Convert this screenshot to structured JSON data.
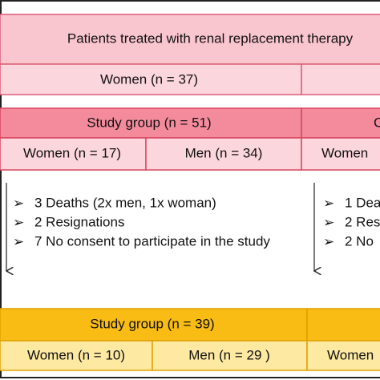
{
  "top": {
    "title": "Patients treated with renal replacement therapy",
    "women": "Women (n = 37)"
  },
  "study_group": {
    "title": "Study group (n = 51)",
    "women": "Women (n = 17)",
    "men": "Men (n = 34)"
  },
  "control_group": {
    "title": "C",
    "women": "Women"
  },
  "study_exclusions": [
    "3 Deaths (2x men, 1x woman)",
    "2 Resignations",
    "7 No consent to participate in the study"
  ],
  "control_exclusions": [
    "1 Dea",
    "2 Res",
    "2 No"
  ],
  "final_study_group": {
    "title": "Study group (n = 39)",
    "women": "Women (n = 10)",
    "men": "Men (n = 29 )"
  },
  "final_control_group": {
    "women": "Women"
  }
}
